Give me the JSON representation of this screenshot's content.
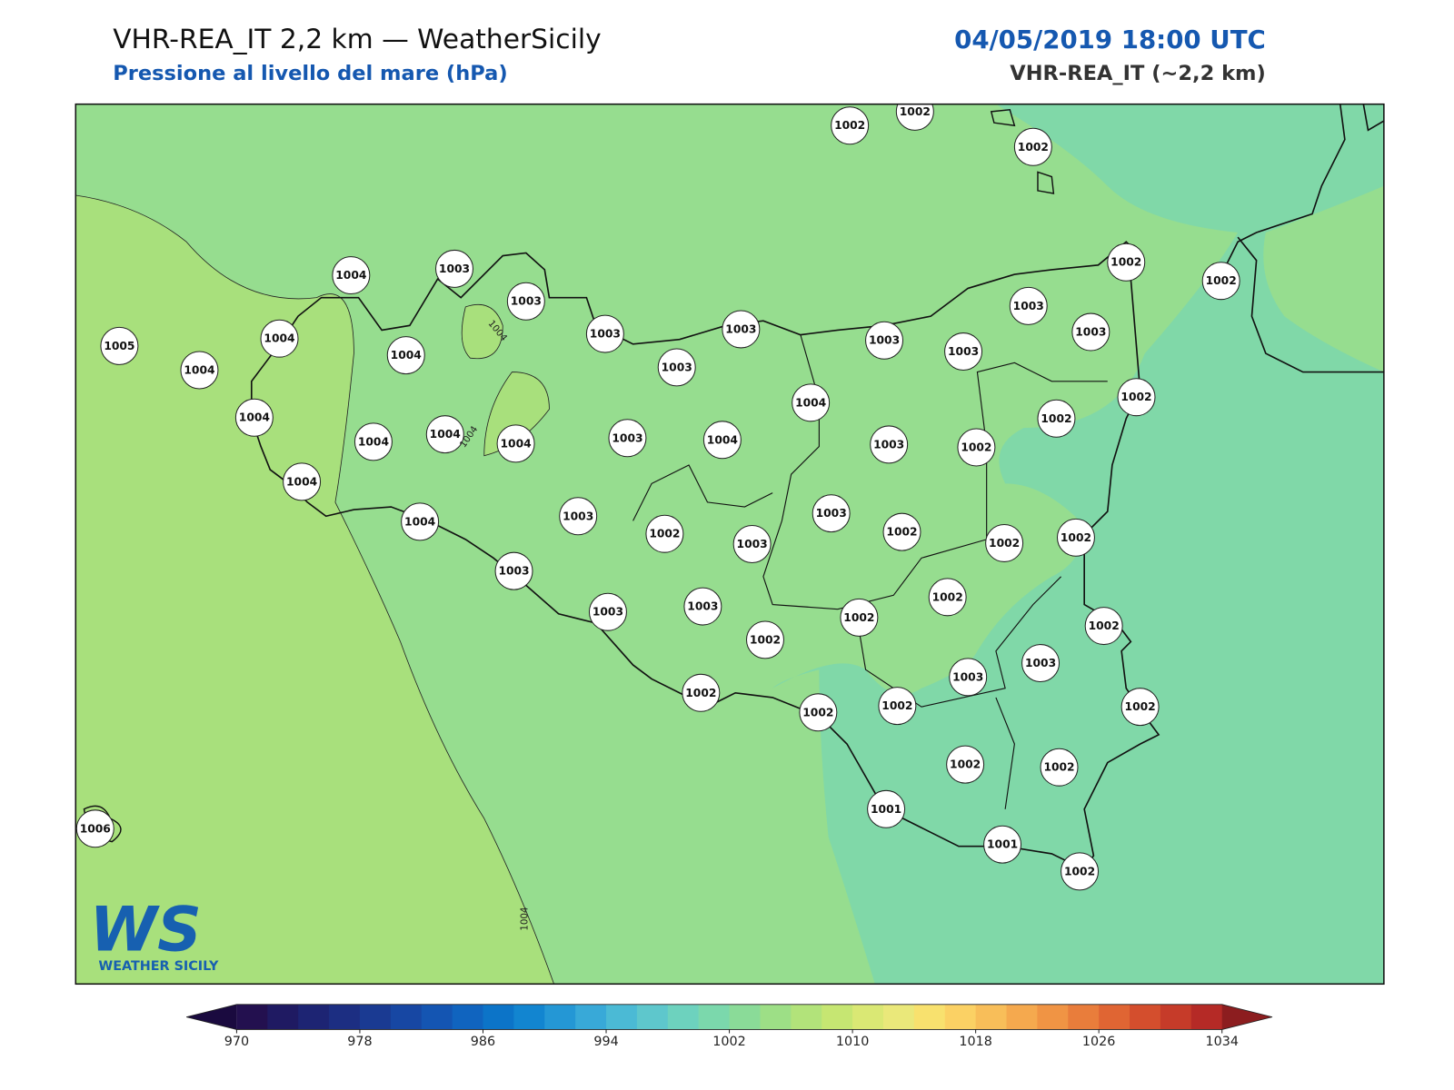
{
  "header": {
    "title": "VHR-REA_IT 2,2 km — WeatherSicily",
    "subtitle": "Pressione al livello del mare (hPa)",
    "datetime": "04/05/2019 18:00 UTC",
    "model": "VHR-REA_IT (~2,2 km)"
  },
  "map": {
    "station_values": [
      1002,
      1002,
      1002,
      1004,
      1003,
      1003,
      1005,
      1004,
      1004,
      1004,
      1003,
      1003,
      1003,
      1003,
      1003,
      1003,
      1003,
      1002,
      1002,
      1002,
      1002,
      1004,
      1004,
      1004,
      1004,
      1003,
      1004,
      1004,
      1003,
      1002,
      1004,
      1004,
      1003,
      1002,
      1003,
      1003,
      1002,
      1002,
      1002,
      1003,
      1003,
      1003,
      1002,
      1002,
      1002,
      1002,
      1003,
      1003,
      1002,
      1002,
      1002,
      1002,
      1002,
      1002,
      1001,
      1001,
      1002,
      1006
    ],
    "contour_labels": [
      "1004",
      "1004",
      "1004"
    ],
    "logo": {
      "mark": "WS",
      "text": "WEATHER SICILY"
    }
  },
  "colorbar": {
    "range": [
      970,
      1034
    ],
    "ticks": [
      970,
      978,
      986,
      994,
      1002,
      1010,
      1018,
      1026,
      1034
    ],
    "colors": [
      "#23104f",
      "#1f1a62",
      "#1d2473",
      "#1c2e82",
      "#1a3a92",
      "#1747a3",
      "#1455b2",
      "#1064bf",
      "#0c74c8",
      "#1285d0",
      "#2497d5",
      "#38a9d8",
      "#4bbad5",
      "#5ec7cc",
      "#6dd2be",
      "#7bd8ac",
      "#8adb98",
      "#9ddf86",
      "#b2e37a",
      "#c6e672",
      "#dae874",
      "#eae87a",
      "#f8e16e",
      "#fbd164",
      "#f8be59",
      "#f5a94e",
      "#f09444",
      "#e97d3b",
      "#e06533",
      "#d44e2d",
      "#c63b29",
      "#b52a26"
    ],
    "extend_colors": [
      "#1a0a3f",
      "#8c1d1f"
    ]
  }
}
